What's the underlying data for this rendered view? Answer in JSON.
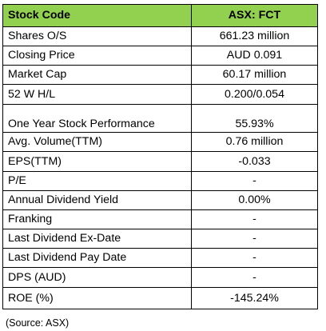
{
  "table": {
    "header": {
      "label": "Stock Code",
      "value": "ASX: FCT"
    },
    "rows": [
      {
        "label": "Shares O/S",
        "value": "661.23 million"
      },
      {
        "label": "Closing Price",
        "value": "AUD 0.091"
      },
      {
        "label": "Market Cap",
        "value": "60.17 million"
      },
      {
        "label": "52 W H/L",
        "value": "0.200/0.054"
      },
      {
        "label": "One Year Stock Performance",
        "value": "55.93%"
      },
      {
        "label": "Avg. Volume(TTM)",
        "value": "0.76 million"
      },
      {
        "label": "EPS(TTM)",
        "value": "-0.033"
      },
      {
        "label": "P/E",
        "value": "-"
      },
      {
        "label": "Annual Dividend Yield",
        "value": "0.00%"
      },
      {
        "label": "Franking",
        "value": "-"
      },
      {
        "label": "Last Dividend Ex-Date",
        "value": "-"
      },
      {
        "label": "Last Dividend Pay Date",
        "value": "-"
      },
      {
        "label": "DPS (AUD)",
        "value": "-"
      },
      {
        "label": "ROE (%)",
        "value": "-145.24%"
      }
    ]
  },
  "source": "(Source: ASX)",
  "colors": {
    "header_background": "#92d050",
    "border": "#000000"
  }
}
